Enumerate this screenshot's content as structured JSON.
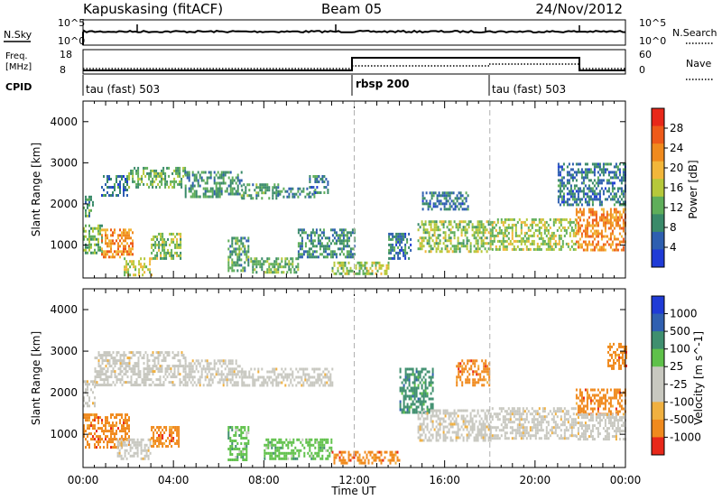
{
  "header": {
    "station": "Kapuskasing (fitACF)",
    "beam": "Beam 05",
    "date": "24/Nov/2012"
  },
  "panels": {
    "nsky": {
      "left_label": "N.Sky",
      "right_label": "N.Search",
      "left_ticks": [
        "10^5",
        "10^0"
      ],
      "right_ticks": [
        "10^5",
        "10^0"
      ]
    },
    "freq": {
      "left_label_1": "Freq.",
      "left_label_2": "[MHz]",
      "right_label": "Nave",
      "left_ticks": [
        "18",
        "8"
      ],
      "right_ticks": [
        "60",
        "0"
      ]
    },
    "cpid": {
      "label": "CPID",
      "modes": [
        {
          "name": "tau (fast) 503",
          "start_hour": 0
        },
        {
          "name": "rbsp 200",
          "start_hour": 12
        },
        {
          "name": "tau (fast) 503",
          "start_hour": 18
        }
      ]
    }
  },
  "colors": {
    "power": [
      "#1f3bd6",
      "#2e5fb0",
      "#3a8a6a",
      "#5fae5a",
      "#b6c83a",
      "#f2b63a",
      "#f08a1e",
      "#ee5a1a",
      "#e8281a"
    ],
    "velocity": [
      "#e8281a",
      "#f08a1e",
      "#f0b040",
      "#c8c8c0",
      "#c8c8c0",
      "#5fc14a",
      "#3f8f6f",
      "#3060b0",
      "#1f3bd6"
    ],
    "gray_scatter": "#c8c8c0"
  },
  "chart_data": [
    {
      "type": "heatmap",
      "title": "Power",
      "xlabel": "",
      "ylabel": "Slant Range [km]",
      "xlim": [
        0,
        24
      ],
      "ylim": [
        200,
        4500
      ],
      "y_ticks": [
        1000,
        2000,
        3000,
        4000
      ],
      "colorbar_label": "Power [dB]",
      "colorbar_ticks": [
        "28",
        "24",
        "20",
        "16",
        "12",
        "8",
        "4"
      ],
      "colorbar_range": [
        0,
        32
      ],
      "mode_boundaries_hours": [
        12,
        18
      ],
      "regions": [
        {
          "t0": 0.0,
          "t1": 0.4,
          "r0": 1700,
          "r1": 2200,
          "db": 10
        },
        {
          "t0": 0.8,
          "t1": 2.0,
          "r0": 2200,
          "r1": 2700,
          "db": 6
        },
        {
          "t0": 2.0,
          "t1": 4.5,
          "r0": 2400,
          "r1": 2900,
          "db": 12
        },
        {
          "t0": 4.5,
          "t1": 7.0,
          "r0": 2200,
          "r1": 2800,
          "db": 9
        },
        {
          "t0": 7.0,
          "t1": 8.6,
          "r0": 2150,
          "r1": 2500,
          "db": 10
        },
        {
          "t0": 8.6,
          "t1": 10.2,
          "r0": 2150,
          "r1": 2400,
          "db": 8
        },
        {
          "t0": 10.0,
          "t1": 10.8,
          "r0": 2300,
          "r1": 2700,
          "db": 6
        },
        {
          "t0": 0.0,
          "t1": 0.8,
          "r0": 800,
          "r1": 1500,
          "db": 12
        },
        {
          "t0": 0.8,
          "t1": 2.2,
          "r0": 700,
          "r1": 1400,
          "db": 24
        },
        {
          "t0": 1.8,
          "t1": 3.0,
          "r0": 300,
          "r1": 700,
          "db": 16
        },
        {
          "t0": 3.0,
          "t1": 4.3,
          "r0": 700,
          "r1": 1300,
          "db": 14
        },
        {
          "t0": 6.4,
          "t1": 7.3,
          "r0": 400,
          "r1": 1200,
          "db": 10
        },
        {
          "t0": 7.4,
          "t1": 9.5,
          "r0": 350,
          "r1": 700,
          "db": 12
        },
        {
          "t0": 9.5,
          "t1": 12.0,
          "r0": 700,
          "r1": 1400,
          "db": 8
        },
        {
          "t0": 11.0,
          "t1": 13.5,
          "r0": 300,
          "r1": 600,
          "db": 14
        },
        {
          "t0": 13.5,
          "t1": 14.5,
          "r0": 700,
          "r1": 1300,
          "db": 6
        },
        {
          "t0": 14.8,
          "t1": 18.0,
          "r0": 850,
          "r1": 1600,
          "db": 14
        },
        {
          "t0": 18.0,
          "t1": 21.8,
          "r0": 900,
          "r1": 1650,
          "db": 15
        },
        {
          "t0": 21.8,
          "t1": 24.0,
          "r0": 900,
          "r1": 1900,
          "db": 24
        },
        {
          "t0": 15.0,
          "t1": 17.0,
          "r0": 1900,
          "r1": 2300,
          "db": 6
        },
        {
          "t0": 21.0,
          "t1": 24.0,
          "r0": 2000,
          "r1": 3000,
          "db": 6
        }
      ]
    },
    {
      "type": "heatmap",
      "title": "Velocity",
      "xlabel": "Time UT",
      "ylabel": "Slant Range [km]",
      "xlim": [
        0,
        24
      ],
      "ylim": [
        200,
        4500
      ],
      "x_ticks": [
        "00:00",
        "04:00",
        "08:00",
        "12:00",
        "16:00",
        "20:00",
        "00:00"
      ],
      "y_ticks": [
        1000,
        2000,
        3000,
        4000
      ],
      "colorbar_label": "Velocity [m s^-1]",
      "colorbar_ticks": [
        "1000",
        "500",
        "100",
        "25",
        "-25",
        "-100",
        "-500",
        "-1000"
      ],
      "mode_boundaries_hours": [
        12,
        18
      ],
      "regions": [
        {
          "t0": 0.0,
          "t1": 0.5,
          "r0": 1700,
          "r1": 2300,
          "v": 0
        },
        {
          "t0": 0.5,
          "t1": 4.5,
          "r0": 2200,
          "r1": 3000,
          "v": 0
        },
        {
          "t0": 4.5,
          "t1": 7.0,
          "r0": 2200,
          "r1": 2800,
          "v": 0
        },
        {
          "t0": 7.0,
          "t1": 11.0,
          "r0": 2150,
          "r1": 2600,
          "v": 0
        },
        {
          "t0": 0.0,
          "t1": 2.0,
          "r0": 700,
          "r1": 1500,
          "v": -150
        },
        {
          "t0": 1.5,
          "t1": 3.0,
          "r0": 400,
          "r1": 900,
          "v": 0
        },
        {
          "t0": 3.0,
          "t1": 4.2,
          "r0": 700,
          "r1": 1200,
          "v": -120
        },
        {
          "t0": 6.4,
          "t1": 7.3,
          "r0": 400,
          "r1": 1200,
          "v": 60
        },
        {
          "t0": 8.0,
          "t1": 11.0,
          "r0": 400,
          "r1": 900,
          "v": 60
        },
        {
          "t0": 11.0,
          "t1": 14.0,
          "r0": 300,
          "r1": 600,
          "v": -120
        },
        {
          "t0": 14.0,
          "t1": 15.5,
          "r0": 1500,
          "r1": 2600,
          "v": 300
        },
        {
          "t0": 14.8,
          "t1": 18.0,
          "r0": 850,
          "r1": 1600,
          "v": 0
        },
        {
          "t0": 18.0,
          "t1": 21.8,
          "r0": 900,
          "r1": 1650,
          "v": 0
        },
        {
          "t0": 21.8,
          "t1": 24.0,
          "r0": 1500,
          "r1": 2100,
          "v": -150
        },
        {
          "t0": 21.8,
          "t1": 24.0,
          "r0": 900,
          "r1": 1500,
          "v": 0
        },
        {
          "t0": 16.5,
          "t1": 18.0,
          "r0": 2200,
          "r1": 2800,
          "v": -150
        },
        {
          "t0": 23.2,
          "t1": 24.0,
          "r0": 2600,
          "r1": 3200,
          "v": -150
        }
      ]
    }
  ]
}
